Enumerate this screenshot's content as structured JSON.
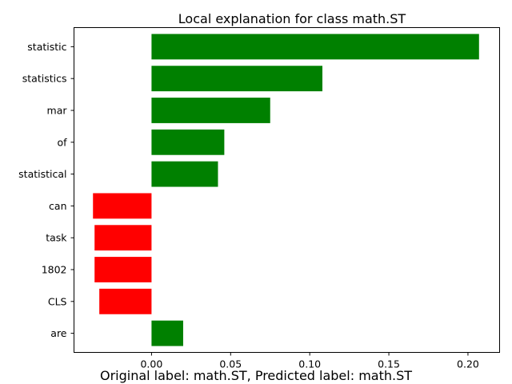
{
  "chart_data": {
    "type": "bar",
    "orientation": "horizontal",
    "title": "Local explanation for class math.ST",
    "caption": "Original label: math.ST, Predicted label: math.ST",
    "categories": [
      "statistic",
      "statistics",
      "mar",
      "of",
      "statistical",
      "can",
      "task",
      "1802",
      "CLS",
      "are"
    ],
    "values": [
      0.207,
      0.108,
      0.075,
      0.046,
      0.042,
      -0.037,
      -0.036,
      -0.036,
      -0.033,
      0.02
    ],
    "colors": {
      "positive": "#008000",
      "negative": "#ff0000"
    },
    "xlim": [
      -0.049,
      0.22
    ],
    "xticks": [
      0.0,
      0.05,
      0.1,
      0.15,
      0.2
    ],
    "xtick_labels": [
      "0.00",
      "0.05",
      "0.10",
      "0.15",
      "0.20"
    ],
    "grid": false,
    "legend": "none"
  }
}
